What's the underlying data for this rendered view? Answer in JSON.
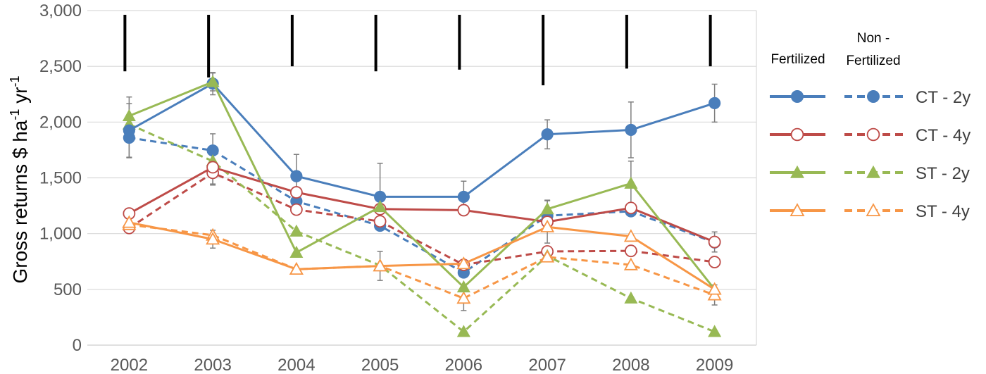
{
  "chart_data": {
    "type": "line",
    "title": "",
    "xlabel": "",
    "ylabel": {
      "main": "Gross returns $ ha",
      "sup1": "-1",
      "mid": " yr",
      "sup2": "-1"
    },
    "ylim": [
      0,
      3000
    ],
    "yticks": [
      0,
      500,
      1000,
      1500,
      2000,
      2500,
      3000
    ],
    "ytick_labels": [
      "0",
      "500",
      "1,000",
      "1,500",
      "2,000",
      "2,500",
      "3,000"
    ],
    "categories": [
      "2002",
      "2003",
      "2004",
      "2005",
      "2006",
      "2007",
      "2008",
      "2009"
    ],
    "grid": "horizontal",
    "legend_placement": "right",
    "legend_headers": {
      "fertilized": "Fertilized",
      "nonfert_line1": "Non -",
      "nonfert_line2": "Fertilized"
    },
    "legend_rows": [
      {
        "label": "CT - 2y",
        "color": "#4a7ebb",
        "marker": "circle-filled"
      },
      {
        "label": "CT - 4y",
        "color": "#be4b48",
        "marker": "circle-open"
      },
      {
        "label": "ST - 2y",
        "color": "#98b954",
        "marker": "triangle-filled"
      },
      {
        "label": "ST - 4y",
        "color": "#f79646",
        "marker": "triangle-open"
      }
    ],
    "lsd_bars": [
      {
        "year": "2002",
        "from": 2455,
        "to": 3000
      },
      {
        "year": "2003",
        "from": 2400,
        "to": 3000
      },
      {
        "year": "2004",
        "from": 2500,
        "to": 3000
      },
      {
        "year": "2005",
        "from": 2455,
        "to": 3000
      },
      {
        "year": "2006",
        "from": 2470,
        "to": 3000
      },
      {
        "year": "2007",
        "from": 2330,
        "to": 3000
      },
      {
        "year": "2008",
        "from": 2480,
        "to": 3000
      },
      {
        "year": "2009",
        "from": 2500,
        "to": 3000
      }
    ],
    "series": [
      {
        "key": "ct2-nf",
        "color": "#4a7ebb",
        "dashed": true,
        "marker": "circle-filled",
        "values": [
          1860,
          1745,
          1290,
          1070,
          650,
          1160,
          1200,
          920
        ],
        "errors": [
          180,
          150,
          0,
          0,
          0,
          0,
          0,
          0
        ]
      },
      {
        "key": "ct4-nf",
        "color": "#be4b48",
        "dashed": true,
        "marker": "circle-open",
        "values": [
          1050,
          1545,
          1215,
          1110,
          720,
          840,
          845,
          745
        ],
        "errors": [
          0,
          110,
          0,
          0,
          0,
          0,
          0,
          0
        ]
      },
      {
        "key": "st2-nf",
        "color": "#98b954",
        "dashed": true,
        "marker": "triangle-filled",
        "values": [
          1980,
          1650,
          1020,
          715,
          120,
          800,
          420,
          120
        ],
        "errors": [
          0,
          0,
          0,
          0,
          0,
          0,
          0,
          0
        ]
      },
      {
        "key": "st4-nf",
        "color": "#f79646",
        "dashed": true,
        "marker": "triangle-open",
        "values": [
          1080,
          985,
          680,
          710,
          420,
          790,
          720,
          450
        ],
        "errors": [
          0,
          0,
          0,
          0,
          110,
          0,
          0,
          90
        ]
      },
      {
        "key": "ct2-f",
        "color": "#4a7ebb",
        "dashed": false,
        "marker": "circle-filled",
        "values": [
          1925,
          2345,
          1515,
          1330,
          1330,
          1890,
          1930,
          2170
        ],
        "errors": [
          240,
          100,
          195,
          300,
          140,
          130,
          250,
          170
        ]
      },
      {
        "key": "ct4-f",
        "color": "#be4b48",
        "dashed": false,
        "marker": "circle-open",
        "values": [
          1180,
          1595,
          1370,
          1220,
          1210,
          1105,
          1230,
          925
        ],
        "errors": [
          0,
          150,
          0,
          0,
          0,
          190,
          0,
          90
        ]
      },
      {
        "key": "st2-f",
        "color": "#98b954",
        "dashed": false,
        "marker": "triangle-filled",
        "values": [
          2055,
          2360,
          830,
          1240,
          520,
          1220,
          1450,
          500
        ],
        "errors": [
          170,
          80,
          0,
          0,
          0,
          80,
          200,
          0
        ]
      },
      {
        "key": "st4-f",
        "color": "#f79646",
        "dashed": false,
        "marker": "triangle-open",
        "values": [
          1100,
          950,
          680,
          710,
          730,
          1060,
          975,
          500
        ],
        "errors": [
          0,
          80,
          0,
          130,
          0,
          0,
          0,
          0
        ]
      }
    ]
  }
}
